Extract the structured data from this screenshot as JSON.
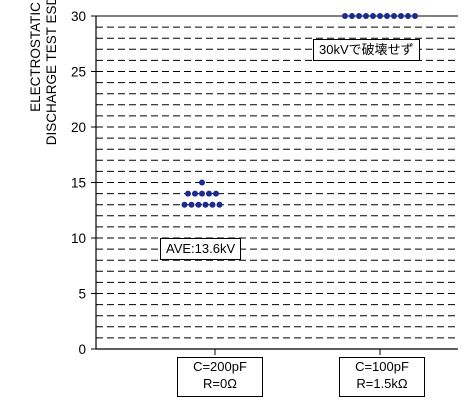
{
  "chart_data": {
    "type": "scatter",
    "ylabel_lines": [
      "ELECTROSTATIC",
      "DISCHARGE TEST ESD(KV)"
    ],
    "ylim": [
      0,
      30
    ],
    "yticks": [
      0,
      5,
      10,
      15,
      20,
      25,
      30
    ],
    "grid": "dashed horizontal lines every 1 kV",
    "categories": [
      {
        "lines": [
          "C=200pF",
          "R=0Ω"
        ]
      },
      {
        "lines": [
          "C=100pF",
          "R=1.5kΩ"
        ]
      }
    ],
    "series": [
      {
        "category": 0,
        "points": [
          {
            "value": 15,
            "count": 1
          },
          {
            "value": 14,
            "count": 5
          },
          {
            "value": 13,
            "count": 6
          }
        ]
      },
      {
        "category": 1,
        "points": [
          {
            "value": 30,
            "count": 11
          }
        ]
      }
    ],
    "annotations": [
      "AVE:13.6kV",
      "30kVで破壊せず"
    ],
    "marker_color": "#1a2a8f"
  }
}
